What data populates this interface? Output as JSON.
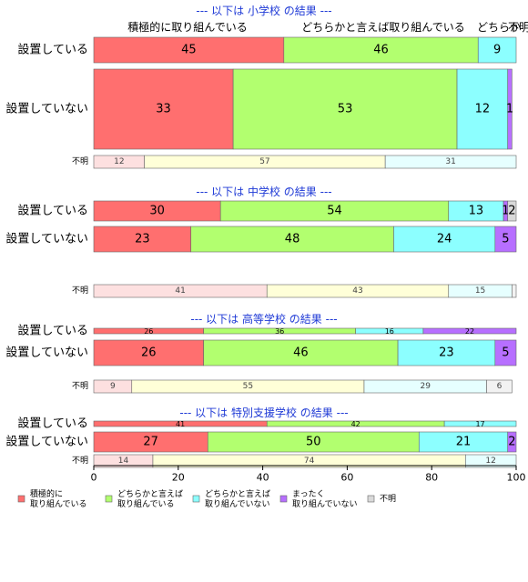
{
  "chart_data": {
    "type": "bar",
    "orientation": "horizontal",
    "stacked": true,
    "xlim": [
      0,
      100
    ],
    "x_ticks": [
      "0",
      "20",
      "40",
      "60",
      "80",
      "100"
    ],
    "top_header": {
      "labels": [
        "積極的に取り組んでいる",
        "どちらかと言えば取り組んでいる",
        "どちらか",
        "不明"
      ]
    },
    "categories_legend": [
      {
        "key": "active",
        "label_lines": [
          "積極的に",
          "取り組んでいる"
        ],
        "color": "#ff6f6f"
      },
      {
        "key": "somewhat",
        "label_lines": [
          "どちらかと言えば",
          "取り組んでいる"
        ],
        "color": "#b2ff6f"
      },
      {
        "key": "somewhat_not",
        "label_lines": [
          "どちらかと言えば",
          "取り組んでいない"
        ],
        "color": "#8cffff"
      },
      {
        "key": "not_at_all",
        "label_lines": [
          "まったく",
          "取り組んでいない"
        ],
        "color": "#b76fff"
      },
      {
        "key": "unknown",
        "label_lines": [
          "不明"
        ],
        "color": "#d9d9d9"
      }
    ],
    "sections": [
      {
        "title": "--- 以下は 小学校 の結果 ---",
        "bars": [
          {
            "label": "設置している",
            "size": "large",
            "values": [
              45,
              46,
              9,
              0,
              0
            ],
            "labels": [
              "45",
              "46",
              "9",
              "",
              ""
            ]
          },
          {
            "label": "設置していない",
            "size": "xlarge",
            "values": [
              33,
              53,
              12,
              1,
              0
            ],
            "labels": [
              "33",
              "53",
              "12",
              "1",
              ""
            ]
          },
          {
            "label": "不明",
            "size": "small",
            "light": true,
            "values": [
              12,
              57,
              31,
              0,
              0
            ],
            "labels": [
              "12",
              "57",
              "31",
              "",
              ""
            ]
          }
        ]
      },
      {
        "title": "--- 以下は 中学校 の結果 ---",
        "bars": [
          {
            "label": "設置している",
            "size": "medium",
            "values": [
              30,
              54,
              13,
              1,
              2
            ],
            "labels": [
              "30",
              "54",
              "13",
              "1",
              "2"
            ]
          },
          {
            "label": "設置していない",
            "size": "large",
            "values": [
              23,
              48,
              24,
              5,
              0
            ],
            "labels": [
              "23",
              "48",
              "24",
              "5",
              ""
            ]
          },
          {
            "label": "不明",
            "size": "small",
            "light": true,
            "values": [
              41,
              43,
              15,
              0,
              1
            ],
            "labels": [
              "41",
              "43",
              "15",
              "",
              ""
            ]
          }
        ]
      },
      {
        "title": "--- 以下は 高等学校 の結果 ---",
        "bars": [
          {
            "label": "設置している",
            "size": "tiny",
            "values": [
              26,
              36,
              16,
              22,
              0
            ],
            "labels": [
              "26",
              "36",
              "16",
              "22",
              ""
            ]
          },
          {
            "label": "設置していない",
            "size": "large",
            "values": [
              26,
              46,
              23,
              5,
              0
            ],
            "labels": [
              "26",
              "46",
              "23",
              "5",
              ""
            ]
          },
          {
            "label": "不明",
            "size": "small",
            "light": true,
            "values": [
              9,
              55,
              29,
              0,
              6
            ],
            "labels": [
              "9",
              "55",
              "29",
              "",
              "6"
            ]
          }
        ]
      },
      {
        "title": "--- 以下は 特別支援学校 の結果 ---",
        "bars": [
          {
            "label": "設置している",
            "size": "tiny",
            "values": [
              41,
              42,
              17,
              0,
              0
            ],
            "labels": [
              "41",
              "42",
              "17",
              "",
              ""
            ]
          },
          {
            "label": "設置していない",
            "size": "medium",
            "values": [
              27,
              50,
              21,
              2,
              0
            ],
            "labels": [
              "27",
              "50",
              "21",
              "2",
              ""
            ]
          },
          {
            "label": "不明",
            "size": "small",
            "light": true,
            "values": [
              14,
              74,
              12,
              0,
              0
            ],
            "labels": [
              "14",
              "74",
              "12",
              "",
              ""
            ]
          }
        ]
      }
    ]
  }
}
